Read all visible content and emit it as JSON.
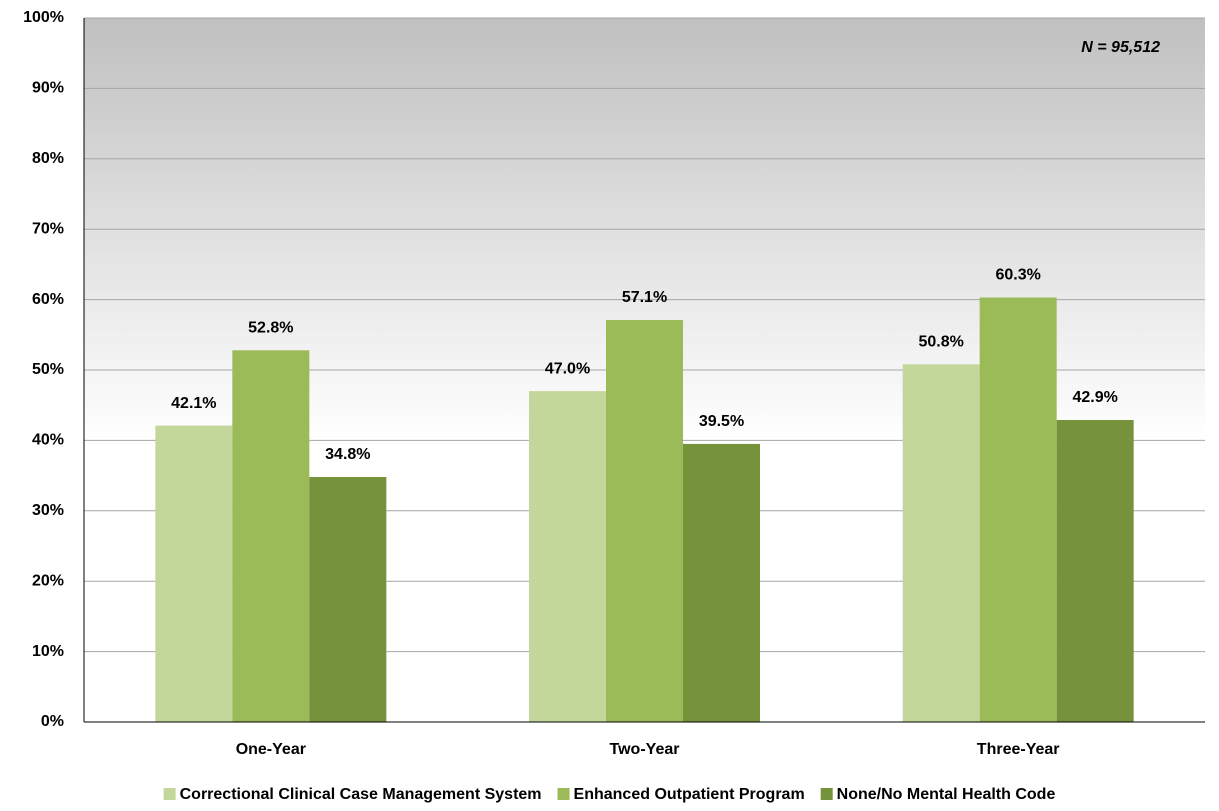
{
  "chart_data": {
    "type": "bar",
    "annotation": "N = 95,512",
    "categories": [
      "One-Year",
      "Two-Year",
      "Three-Year"
    ],
    "series": [
      {
        "name": "Correctional Clinical Case Management System",
        "color": "#c4d79b",
        "values": [
          42.1,
          47.0,
          50.8
        ],
        "value_labels": [
          "42.1%",
          "47.0%",
          "50.8%"
        ]
      },
      {
        "name": "Enhanced Outpatient Program",
        "color": "#9bbb59",
        "values": [
          52.8,
          57.1,
          60.3
        ],
        "value_labels": [
          "52.8%",
          "57.1%",
          "60.3%"
        ]
      },
      {
        "name": "None/No Mental Health Code",
        "color": "#76933c",
        "values": [
          34.8,
          39.5,
          42.9
        ],
        "value_labels": [
          "34.8%",
          "39.5%",
          "42.9%"
        ]
      }
    ],
    "ylim": [
      0,
      100
    ],
    "yticks": [
      {
        "value": 0,
        "label": "0%"
      },
      {
        "value": 10,
        "label": "10%"
      },
      {
        "value": 20,
        "label": "20%"
      },
      {
        "value": 30,
        "label": "30%"
      },
      {
        "value": 40,
        "label": "40%"
      },
      {
        "value": 50,
        "label": "50%"
      },
      {
        "value": 60,
        "label": "60%"
      },
      {
        "value": 70,
        "label": "70%"
      },
      {
        "value": 80,
        "label": "80%"
      },
      {
        "value": 90,
        "label": "90%"
      },
      {
        "value": 100,
        "label": "100%"
      }
    ],
    "grid": true,
    "legend": "bottom"
  }
}
